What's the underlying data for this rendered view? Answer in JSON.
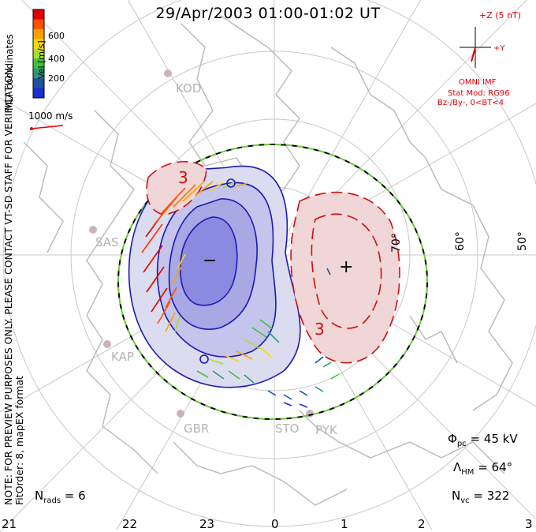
{
  "title": "29/Apr/2003 01:00-01:02 UT",
  "colorbar": {
    "label": "Vel [m/s]",
    "ticks": [
      "600",
      "400",
      "200"
    ],
    "colors": [
      "#e00000",
      "#ff5000",
      "#ffa000",
      "#ffd800",
      "#a8e020",
      "#40c040",
      "#2a9a78",
      "#2050a0",
      "#1a2fd0"
    ]
  },
  "coordinates_label": "MLT coordinates",
  "ref_vector_label": "1000 m/s",
  "preview_note": "NOTE: FOR PREVIEW PURPOSES ONLY. PLEASE CONTACT VT-SD STAFF FOR VERIFICATION.",
  "fit_order": "FitOrder: 8, mapEX format",
  "stations": [
    "KOD",
    "SAS",
    "KAP",
    "GBR",
    "STO",
    "PYK"
  ],
  "lat_labels": [
    "70°",
    "60°",
    "50°"
  ],
  "mlt_labels": [
    "21",
    "22",
    "23",
    "0",
    "1",
    "2",
    "3"
  ],
  "imf": {
    "z_label": "+Z (5 nT)",
    "y_label": "+Y",
    "source": "OMNI IMF",
    "model": "Stat Mod: RG96",
    "condition": "Bz-/By-, 0<BT<4"
  },
  "params": {
    "phi_pc": "45 kV",
    "lambda_hm": "64°",
    "n_vc": "322",
    "n_rads": "6"
  },
  "potential_markers": {
    "min": "−",
    "max": "+"
  },
  "contour_label": "3",
  "colors": {
    "negative": "#1a1ab4",
    "positive": "#d01010",
    "hmb": "#66cc33",
    "coast": "#b8b8b8"
  }
}
